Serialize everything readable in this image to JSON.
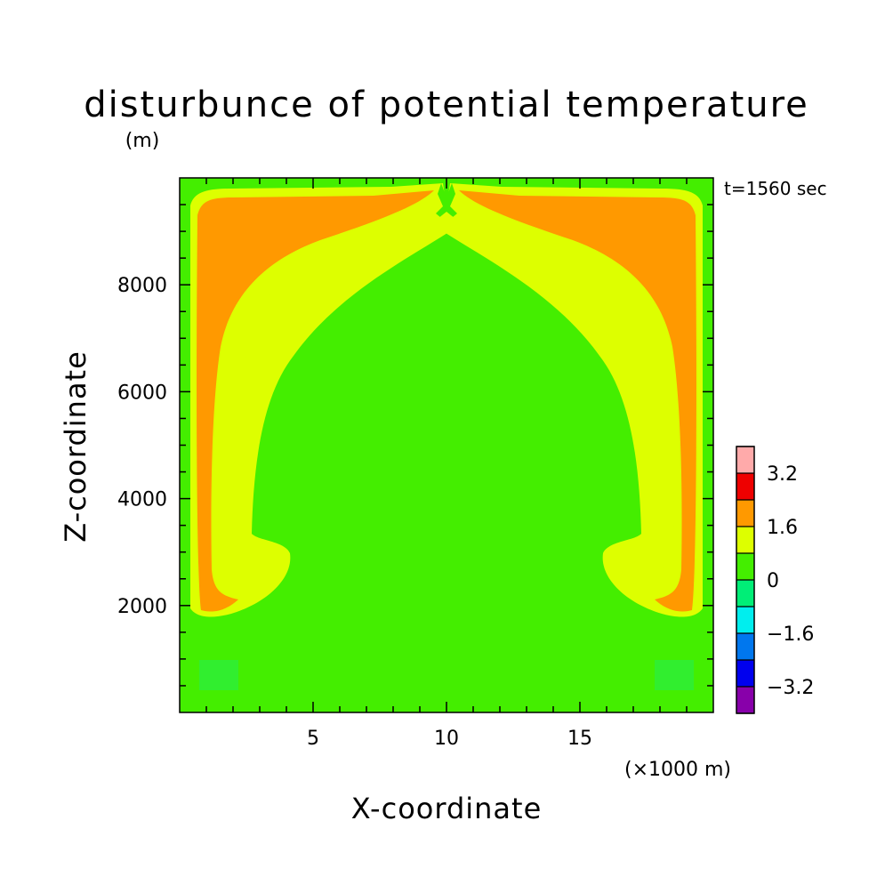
{
  "chart_data": {
    "type": "heatmap",
    "title": "disturbunce of potential temperature",
    "y_unit": "(m)",
    "xlabel": "X-coordinate",
    "ylabel": "Z-coordinate",
    "x_unit": "(×1000 m)",
    "time_label": "t=1560 sec",
    "xlim": [
      0,
      20
    ],
    "ylim": [
      0,
      10000
    ],
    "x_ticks": [
      {
        "value": 5,
        "label": "5"
      },
      {
        "value": 10,
        "label": "10"
      },
      {
        "value": 15,
        "label": "15"
      }
    ],
    "y_ticks": [
      {
        "value": 2000,
        "label": "2000"
      },
      {
        "value": 4000,
        "label": "4000"
      },
      {
        "value": 6000,
        "label": "6000"
      },
      {
        "value": 8000,
        "label": "8000"
      }
    ],
    "colorbar": {
      "levels": [
        -4.0,
        -3.2,
        -2.4,
        -1.6,
        -0.8,
        0,
        0.8,
        1.6,
        2.4,
        3.2,
        4.0
      ],
      "colors": [
        "#8800aa",
        "#0000ee",
        "#0077ee",
        "#00eeee",
        "#00ee77",
        "#44ee00",
        "#ddff00",
        "#ff9900",
        "#ee0000",
        "#ffaaaa"
      ],
      "tick_labels": [
        {
          "value": -3.2,
          "label": "−3.2"
        },
        {
          "value": -1.6,
          "label": "−1.6"
        },
        {
          "value": 0,
          "label": "0"
        },
        {
          "value": 1.6,
          "label": "1.6"
        },
        {
          "value": 3.2,
          "label": "3.2"
        }
      ]
    },
    "field_regions": [
      {
        "level": "0 to 0.8",
        "color": "#44ee00",
        "description": "background and central dome"
      },
      {
        "level": "0.8 to 1.6",
        "color": "#ddff00",
        "description": "outer warm shell along top and side walls"
      },
      {
        "level": "1.6 to 2.4",
        "color": "#ff9900",
        "description": "upper corners and side-wall bands"
      }
    ]
  }
}
